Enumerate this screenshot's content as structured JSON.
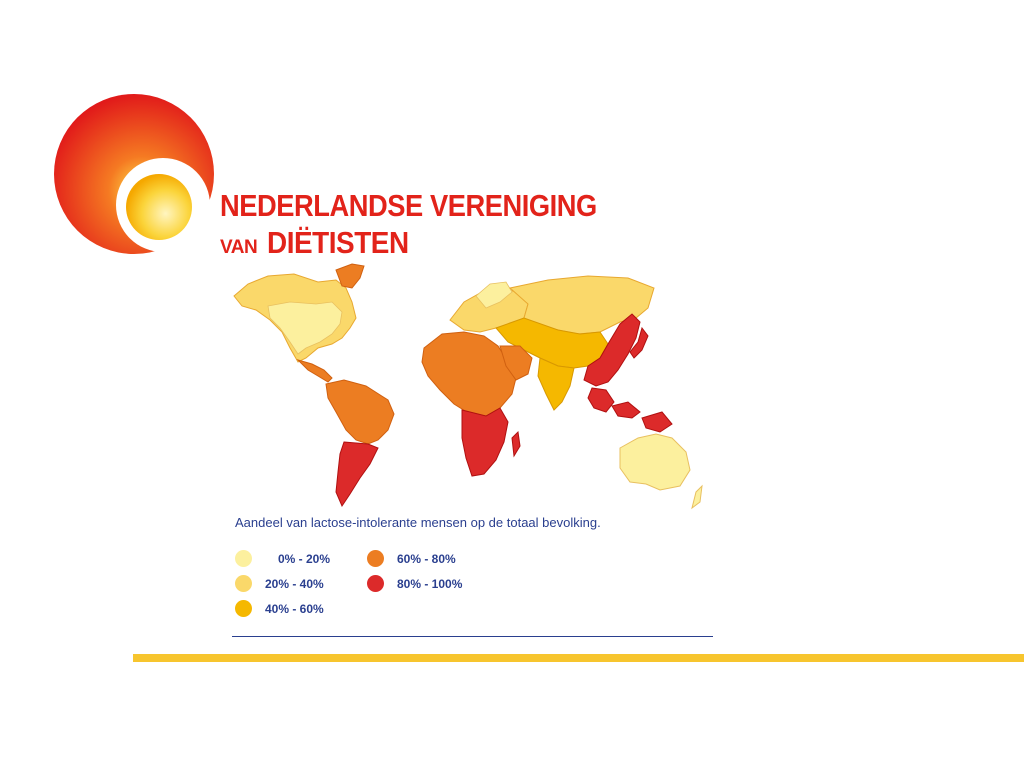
{
  "logo": {
    "line1": "NEDERLANDSE VERENIGING",
    "line2_small": "VAN",
    "line2_large": "DIËTISTEN",
    "colors": {
      "red": "#e2231a",
      "yellow": "#fcd32e"
    }
  },
  "map": {
    "caption": "Aandeel van lactose-intolerante mensen op de totaal bevolking.",
    "legend": [
      {
        "label": "0% - 20%",
        "color": "#fcf09e"
      },
      {
        "label": "20% - 40%",
        "color": "#fad86a"
      },
      {
        "label": "40% - 60%",
        "color": "#f5b800"
      },
      {
        "label": "60% - 80%",
        "color": "#ec7d22"
      },
      {
        "label": "80% - 100%",
        "color": "#dc2a2a"
      }
    ]
  },
  "colors": {
    "divider_blue": "#2a3f8f",
    "accent_yellow": "#f7c52e"
  }
}
